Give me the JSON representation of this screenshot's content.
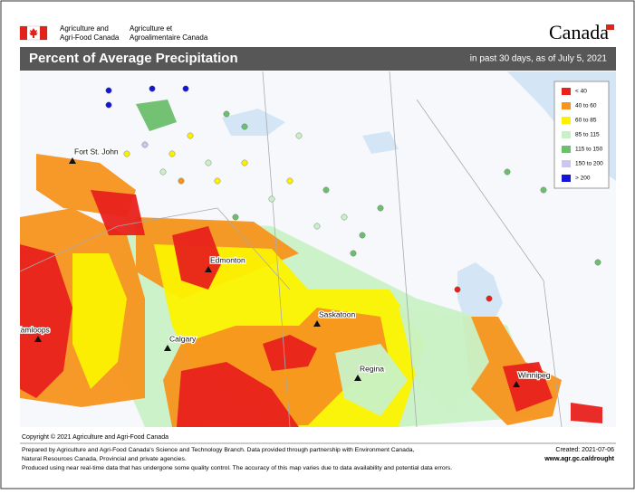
{
  "header": {
    "agency_en": [
      "Agriculture and",
      "Agri-Food Canada"
    ],
    "agency_fr": [
      "Agriculture et",
      "Agroalimentaire Canada"
    ],
    "wordmark": "Canada"
  },
  "title_bar": {
    "title": "Percent of Average Precipitation",
    "subtitle": "in past 30 days, as of July 5, 2021"
  },
  "legend": [
    {
      "label": "< 40",
      "color": "#e8211b"
    },
    {
      "label": "40 to 60",
      "color": "#f5941e"
    },
    {
      "label": "60 to 85",
      "color": "#fcf200"
    },
    {
      "label": "85 to 115",
      "color": "#c9f1c6"
    },
    {
      "label": "115 to 150",
      "color": "#6cbf6c"
    },
    {
      "label": "150 to 200",
      "color": "#cbc6ef"
    },
    {
      "label": "> 200",
      "color": "#1515d8"
    }
  ],
  "cities": [
    "Fort St. John",
    "Edmonton",
    "Kamloops",
    "Calgary",
    "Saskatoon",
    "Regina",
    "Winnipeg"
  ],
  "copyright": "Copyright © 2021 Agriculture and Agri-Food Canada",
  "footer": {
    "notes": [
      "Prepared by Agriculture and Agri-Food Canada's Science and Technology Branch. Data provided through partnership with Environment Canada,",
      "Natural Resources Canada, Provincial and private agencies.",
      "Produced using near real-time data that has undergone some quality control. The accuracy of this map varies due to data availability and potential data errors."
    ],
    "created": "Created: 2021-07-06",
    "url": "www.agr.gc.ca/drought"
  }
}
